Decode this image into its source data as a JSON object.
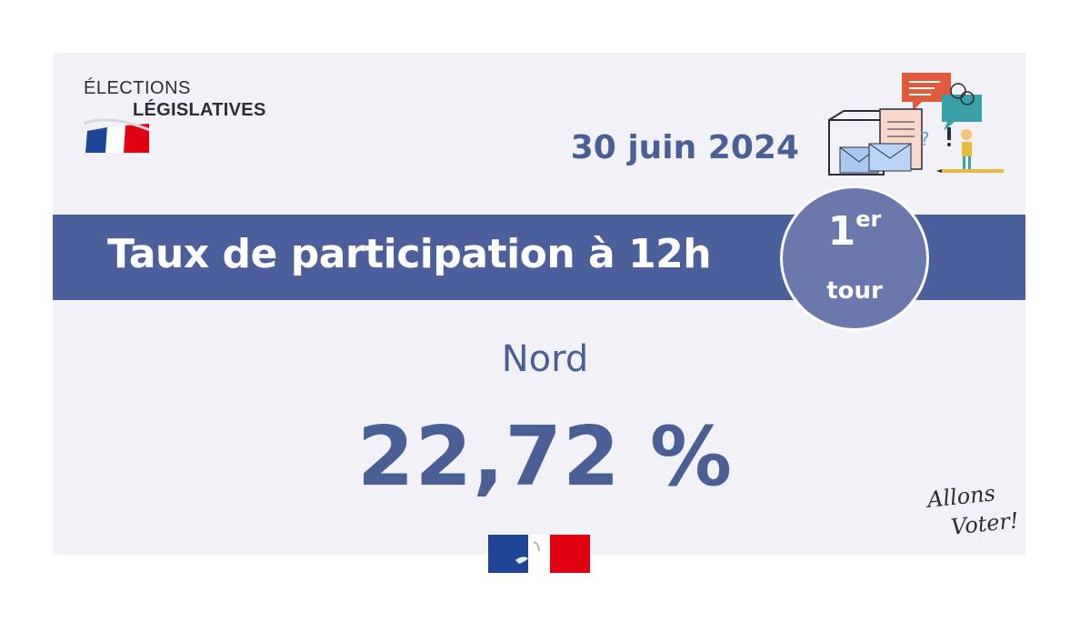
{
  "logo": {
    "line1": "ÉLECTIONS",
    "line2": "LÉGISLATIVES",
    "flag_colors": [
      "#1f4597",
      "#ffffff",
      "#e1000f"
    ]
  },
  "date": "30 juin 2024",
  "banner": {
    "title": "Taux de participation à 12h"
  },
  "round": {
    "number": "1",
    "suffix": "er",
    "label": "tour"
  },
  "department": "Nord",
  "participation_rate": "22,72 %",
  "slogan": {
    "line1": "Allons",
    "line2": "Voter!"
  },
  "colors": {
    "accent": "#4a5f9c",
    "badge": "#6a78ad",
    "text": "#4a5f96",
    "background": "#f1f1f7"
  }
}
